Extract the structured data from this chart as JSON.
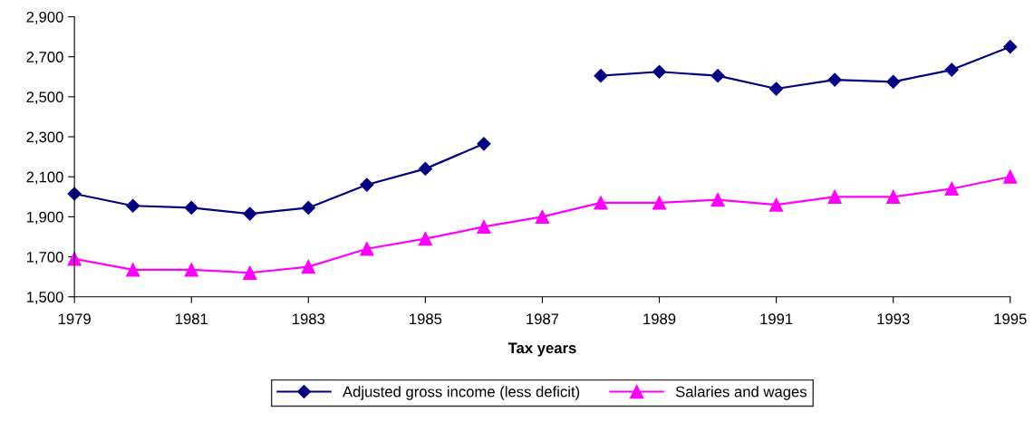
{
  "chart_data": {
    "type": "line",
    "xlabel": "Tax years",
    "x": [
      1979,
      1980,
      1981,
      1982,
      1983,
      1984,
      1985,
      1986,
      1987,
      1988,
      1989,
      1990,
      1991,
      1992,
      1993,
      1994,
      1995
    ],
    "series": [
      {
        "name": "Adjusted gross income (less deficit)",
        "color": "#000080",
        "marker": "diamond",
        "values": [
          2015,
          1955,
          1945,
          1915,
          1945,
          2060,
          2140,
          2265,
          null,
          2605,
          2625,
          2605,
          2540,
          2585,
          2575,
          2635,
          2750
        ]
      },
      {
        "name": "Salaries and wages",
        "color": "#ff00ff",
        "marker": "triangle",
        "values": [
          1690,
          1635,
          1635,
          1620,
          1650,
          1740,
          1790,
          1850,
          1900,
          1970,
          1970,
          1985,
          1960,
          2000,
          2000,
          2040,
          2100
        ]
      }
    ],
    "xlim": [
      1979,
      1995
    ],
    "xticks": [
      1979,
      1981,
      1983,
      1985,
      1987,
      1989,
      1991,
      1993,
      1995
    ],
    "ylim": [
      1500,
      2900
    ],
    "yticks": [
      {
        "value": 1500,
        "label": "1,500"
      },
      {
        "value": 1700,
        "label": "1,700"
      },
      {
        "value": 1900,
        "label": "1,900"
      },
      {
        "value": 2100,
        "label": "2,100"
      },
      {
        "value": 2300,
        "label": "2,300"
      },
      {
        "value": 2500,
        "label": "2,500"
      },
      {
        "value": 2700,
        "label": "2,700"
      },
      {
        "value": 2900,
        "label": "2,900"
      }
    ],
    "grid": false,
    "legend": "bottom",
    "line_style": "solid"
  }
}
